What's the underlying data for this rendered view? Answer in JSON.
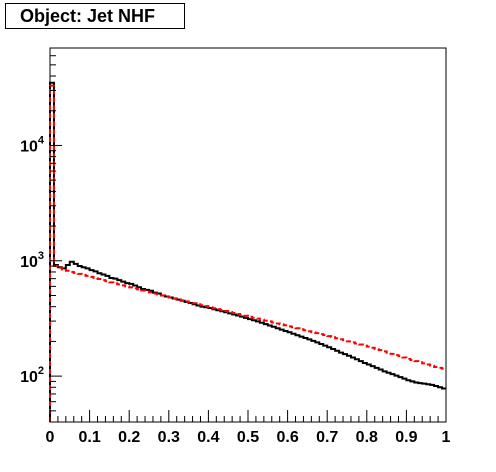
{
  "chart_data": {
    "type": "line",
    "title": "Object: Jet NHF",
    "xlabel": "",
    "ylabel": "",
    "xlim": [
      0,
      1
    ],
    "ylim": [
      40,
      70000
    ],
    "yscale": "log",
    "grid": false,
    "legend": "none",
    "x_ticks": [
      "0",
      "0.1",
      "0.2",
      "0.3",
      "0.4",
      "0.5",
      "0.6",
      "0.7",
      "0.8",
      "0.9",
      "1"
    ],
    "y_ticks": [
      {
        "value": 100,
        "mantissa": "10",
        "exponent": "2"
      },
      {
        "value": 1000,
        "mantissa": "10",
        "exponent": "3"
      },
      {
        "value": 10000,
        "mantissa": "10",
        "exponent": "4"
      }
    ],
    "x": [
      0.0,
      0.01,
      0.02,
      0.03,
      0.04,
      0.05,
      0.06,
      0.07,
      0.08,
      0.09,
      0.1,
      0.11,
      0.12,
      0.13,
      0.14,
      0.15,
      0.16,
      0.17,
      0.18,
      0.19,
      0.2,
      0.21,
      0.22,
      0.23,
      0.24,
      0.25,
      0.26,
      0.27,
      0.28,
      0.29,
      0.3,
      0.31,
      0.32,
      0.33,
      0.34,
      0.35,
      0.36,
      0.37,
      0.38,
      0.39,
      0.4,
      0.41,
      0.42,
      0.43,
      0.44,
      0.45,
      0.46,
      0.47,
      0.48,
      0.49,
      0.5,
      0.51,
      0.52,
      0.53,
      0.54,
      0.55,
      0.56,
      0.57,
      0.58,
      0.59,
      0.6,
      0.61,
      0.62,
      0.63,
      0.64,
      0.65,
      0.66,
      0.67,
      0.68,
      0.69,
      0.7,
      0.71,
      0.72,
      0.73,
      0.74,
      0.75,
      0.76,
      0.77,
      0.78,
      0.79,
      0.8,
      0.81,
      0.82,
      0.83,
      0.84,
      0.85,
      0.86,
      0.87,
      0.88,
      0.89,
      0.9,
      0.91,
      0.92,
      0.93,
      0.94,
      0.95,
      0.96,
      0.97,
      0.98,
      0.99
    ],
    "series": [
      {
        "color": "#000000",
        "dash": "solid",
        "values": [
          35000,
          920,
          880,
          860,
          920,
          980,
          940,
          900,
          880,
          860,
          830,
          810,
          780,
          760,
          740,
          710,
          700,
          680,
          660,
          640,
          630,
          610,
          590,
          570,
          560,
          550,
          530,
          520,
          500,
          490,
          480,
          470,
          460,
          450,
          440,
          430,
          420,
          410,
          400,
          395,
          390,
          380,
          372,
          365,
          358,
          350,
          342,
          335,
          328,
          320,
          312,
          305,
          298,
          290,
          282,
          275,
          268,
          260,
          253,
          246,
          240,
          233,
          226,
          220,
          214,
          208,
          202,
          196,
          190,
          184,
          178,
          172,
          166,
          160,
          155,
          150,
          145,
          140,
          135,
          130,
          126,
          122,
          118,
          114,
          110,
          107,
          104,
          101,
          98,
          95,
          92,
          90,
          88,
          87,
          86,
          85,
          84,
          82,
          80,
          78
        ]
      },
      {
        "color": "#ff0000",
        "dash": "dashed",
        "values": [
          33000,
          900,
          870,
          840,
          820,
          800,
          785,
          770,
          755,
          740,
          725,
          710,
          695,
          680,
          665,
          650,
          637,
          625,
          612,
          600,
          588,
          576,
          565,
          553,
          542,
          532,
          521,
          511,
          501,
          491,
          481,
          472,
          463,
          454,
          445,
          436,
          428,
          420,
          412,
          404,
          396,
          388,
          381,
          374,
          367,
          360,
          353,
          346,
          340,
          334,
          327,
          321,
          315,
          309,
          303,
          298,
          292,
          286,
          281,
          276,
          270,
          265,
          260,
          255,
          250,
          245,
          240,
          236,
          231,
          227,
          222,
          218,
          213,
          209,
          205,
          200,
          196,
          192,
          188,
          184,
          180,
          176,
          172,
          168,
          164,
          160,
          156,
          152,
          149,
          145,
          141,
          138,
          135,
          132,
          129,
          126,
          123,
          120,
          118,
          116
        ]
      }
    ]
  }
}
